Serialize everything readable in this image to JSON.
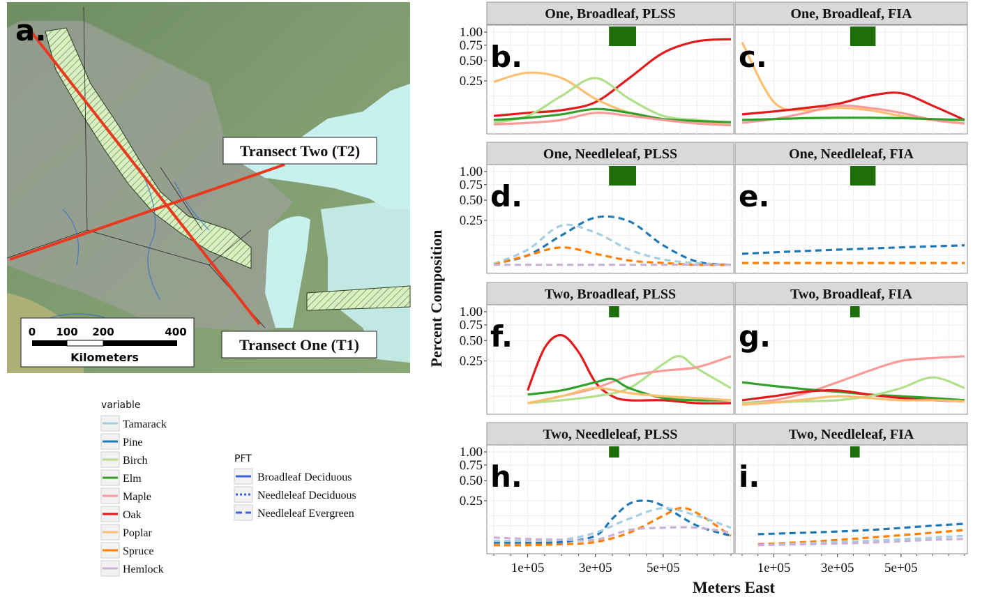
{
  "map": {
    "label": "a.",
    "transect_one": "Transect One (T1)",
    "transect_two": "Transect Two (T2)",
    "scale_ticks": [
      "0",
      "100",
      "200",
      "400"
    ],
    "scale_unit": "Kilometers",
    "colors": {
      "land": "#7c9a6e",
      "water": "#c8f0ee",
      "study_area": "#9ea09a",
      "transect": "#e8381e",
      "ecotone": "#d8f0c0"
    }
  },
  "legend_variable": {
    "title": "variable",
    "items": [
      {
        "name": "Tamarack",
        "color": "#a6cee3"
      },
      {
        "name": "Pine",
        "color": "#1f78b4"
      },
      {
        "name": "Birch",
        "color": "#b2df8a"
      },
      {
        "name": "Elm",
        "color": "#33a02c"
      },
      {
        "name": "Maple",
        "color": "#fb9a99"
      },
      {
        "name": "Oak",
        "color": "#e31a1c"
      },
      {
        "name": "Poplar",
        "color": "#fdbf6f"
      },
      {
        "name": "Spruce",
        "color": "#ff7f00"
      },
      {
        "name": "Hemlock",
        "color": "#cab2d6"
      }
    ]
  },
  "legend_pft": {
    "title": "PFT",
    "items": [
      {
        "name": "Broadleaf Deciduous",
        "dash": "solid"
      },
      {
        "name": "Needleleaf Deciduous",
        "dash": "dotted"
      },
      {
        "name": "Needleleaf Evergreen",
        "dash": "dashed"
      }
    ]
  },
  "chart_data": {
    "type": "line",
    "ylabel": "Percent Composition",
    "xlabel": "Meters East",
    "x_ticks": [
      "1e+05",
      "3e+05",
      "5e+05"
    ],
    "y_ticks": [
      "0.25",
      "0.50",
      "0.75",
      "1.00"
    ],
    "y_scale": "sqrt",
    "xlim": [
      0,
      700000
    ],
    "panels": [
      {
        "strip": "One, Broadleaf, PLSS",
        "label": "b.",
        "bar": [
          340000,
          420000
        ],
        "series": [
          {
            "name": "Oak",
            "x": [
              0,
              100000,
              200000,
              300000,
              400000,
              500000,
              600000,
              700000
            ],
            "values": [
              0.02,
              0.03,
              0.04,
              0.08,
              0.28,
              0.62,
              0.82,
              0.86
            ]
          },
          {
            "name": "Poplar",
            "x": [
              0,
              100000,
              200000,
              300000,
              400000,
              500000,
              600000,
              700000
            ],
            "values": [
              0.24,
              0.34,
              0.28,
              0.1,
              0.03,
              0.01,
              0.005,
              0.005
            ]
          },
          {
            "name": "Birch",
            "x": [
              0,
              100000,
              200000,
              300000,
              400000,
              500000,
              600000,
              700000
            ],
            "values": [
              0.005,
              0.02,
              0.12,
              0.28,
              0.1,
              0.02,
              0.01,
              0.005
            ]
          },
          {
            "name": "Elm",
            "x": [
              0,
              100000,
              200000,
              300000,
              400000,
              500000,
              600000,
              700000
            ],
            "values": [
              0.01,
              0.015,
              0.025,
              0.045,
              0.03,
              0.012,
              0.008,
              0.006
            ]
          },
          {
            "name": "Maple",
            "x": [
              0,
              100000,
              200000,
              300000,
              400000,
              500000,
              600000,
              700000
            ],
            "values": [
              0.003,
              0.005,
              0.01,
              0.03,
              0.02,
              0.01,
              0.004,
              0.002
            ]
          }
        ]
      },
      {
        "strip": "One, Broadleaf, FIA",
        "label": "c.",
        "bar": [
          340000,
          420000
        ],
        "series": [
          {
            "name": "Poplar",
            "x": [
              0,
              100000,
              200000,
              300000,
              400000,
              500000,
              600000,
              700000
            ],
            "values": [
              0.8,
              0.08,
              0.04,
              0.05,
              0.04,
              0.02,
              0.01,
              0.01
            ]
          },
          {
            "name": "Oak",
            "x": [
              0,
              100000,
              200000,
              300000,
              400000,
              500000,
              600000,
              700000
            ],
            "values": [
              0.025,
              0.035,
              0.05,
              0.07,
              0.12,
              0.14,
              0.06,
              0.01
            ]
          },
          {
            "name": "Maple",
            "x": [
              0,
              100000,
              200000,
              300000,
              400000,
              500000,
              600000,
              700000
            ],
            "values": [
              0.005,
              0.012,
              0.03,
              0.06,
              0.05,
              0.03,
              0.01,
              0.004
            ]
          },
          {
            "name": "Elm",
            "x": [
              0,
              100000,
              200000,
              300000,
              400000,
              500000,
              600000,
              700000
            ],
            "values": [
              0.01,
              0.012,
              0.014,
              0.015,
              0.015,
              0.014,
              0.012,
              0.01
            ]
          }
        ]
      },
      {
        "strip": "One, Needleleaf, PLSS",
        "label": "d.",
        "bar": [
          340000,
          420000
        ],
        "series": [
          {
            "name": "Pine",
            "x": [
              0,
              100000,
              200000,
              300000,
              400000,
              500000,
              600000,
              700000
            ],
            "values": [
              0.003,
              0.02,
              0.12,
              0.28,
              0.24,
              0.06,
              0.006,
              0.002
            ]
          },
          {
            "name": "Tamarack",
            "x": [
              0,
              100000,
              200000,
              300000,
              400000,
              500000,
              600000,
              700000
            ],
            "values": [
              0.003,
              0.04,
              0.2,
              0.14,
              0.04,
              0.01,
              0.004,
              0.002
            ]
          },
          {
            "name": "Spruce",
            "x": [
              0,
              100000,
              200000,
              300000,
              400000,
              500000,
              600000,
              700000
            ],
            "values": [
              0.002,
              0.02,
              0.05,
              0.025,
              0.008,
              0.004,
              0.002,
              0.002
            ]
          },
          {
            "name": "Hemlock",
            "x": [
              0,
              100000,
              200000,
              300000,
              400000,
              500000,
              600000,
              700000
            ],
            "values": [
              0.002,
              0.002,
              0.002,
              0.002,
              0.002,
              0.002,
              0.002,
              0.002
            ]
          }
        ]
      },
      {
        "strip": "One, Needleleaf, FIA",
        "label": "e.",
        "bar": [
          340000,
          420000
        ],
        "series": [
          {
            "name": "Pine",
            "x": [
              0,
              100000,
              200000,
              300000,
              400000,
              500000,
              600000,
              700000
            ],
            "values": [
              0.025,
              0.03,
              0.035,
              0.04,
              0.045,
              0.05,
              0.055,
              0.06
            ]
          },
          {
            "name": "Spruce",
            "x": [
              0,
              100000,
              200000,
              300000,
              400000,
              500000,
              600000,
              700000
            ],
            "values": [
              0.004,
              0.004,
              0.004,
              0.004,
              0.004,
              0.004,
              0.004,
              0.004
            ]
          }
        ]
      },
      {
        "strip": "Two, Broadleaf, PLSS",
        "label": "f.",
        "bar": [
          340000,
          370000
        ],
        "series": [
          {
            "name": "Oak",
            "x": [
              100000,
              150000,
              200000,
              250000,
              300000,
              350000,
              400000,
              500000,
              600000,
              700000
            ],
            "values": [
              0.04,
              0.4,
              0.58,
              0.35,
              0.08,
              0.02,
              0.01,
              0.01,
              0.005,
              0.005
            ]
          },
          {
            "name": "Birch",
            "x": [
              100000,
              200000,
              300000,
              400000,
              500000,
              550000,
              600000,
              700000
            ],
            "values": [
              0.005,
              0.01,
              0.02,
              0.05,
              0.22,
              0.3,
              0.18,
              0.05
            ]
          },
          {
            "name": "Maple",
            "x": [
              100000,
              200000,
              300000,
              400000,
              500000,
              600000,
              700000
            ],
            "values": [
              0.005,
              0.02,
              0.05,
              0.12,
              0.16,
              0.19,
              0.3
            ]
          },
          {
            "name": "Elm",
            "x": [
              100000,
              200000,
              300000,
              350000,
              400000,
              500000,
              600000,
              700000
            ],
            "values": [
              0.025,
              0.04,
              0.08,
              0.1,
              0.05,
              0.015,
              0.01,
              0.01
            ]
          },
          {
            "name": "Poplar",
            "x": [
              100000,
              200000,
              300000,
              400000,
              500000,
              600000,
              700000
            ],
            "values": [
              0.005,
              0.02,
              0.05,
              0.03,
              0.02,
              0.015,
              0.01
            ]
          }
        ]
      },
      {
        "strip": "Two, Broadleaf, FIA",
        "label": "g.",
        "bar": [
          340000,
          370000
        ],
        "series": [
          {
            "name": "Maple",
            "x": [
              0,
              100000,
              200000,
              300000,
              400000,
              500000,
              600000,
              700000
            ],
            "values": [
              0.005,
              0.01,
              0.03,
              0.08,
              0.16,
              0.25,
              0.28,
              0.3
            ]
          },
          {
            "name": "Elm",
            "x": [
              0,
              100000,
              200000,
              300000,
              400000,
              500000,
              600000,
              700000
            ],
            "values": [
              0.08,
              0.06,
              0.045,
              0.035,
              0.025,
              0.02,
              0.015,
              0.01
            ]
          },
          {
            "name": "Oak",
            "x": [
              0,
              100000,
              200000,
              300000,
              400000,
              500000,
              600000,
              700000
            ],
            "values": [
              0.01,
              0.02,
              0.035,
              0.04,
              0.025,
              0.015,
              0.01,
              0.008
            ]
          },
          {
            "name": "Birch",
            "x": [
              0,
              100000,
              200000,
              300000,
              400000,
              500000,
              600000,
              700000
            ],
            "values": [
              0.005,
              0.006,
              0.008,
              0.01,
              0.02,
              0.05,
              0.11,
              0.05
            ]
          },
          {
            "name": "Poplar",
            "x": [
              0,
              100000,
              200000,
              300000,
              400000,
              500000,
              600000,
              700000
            ],
            "values": [
              0.003,
              0.006,
              0.012,
              0.02,
              0.015,
              0.01,
              0.01,
              0.008
            ]
          }
        ]
      },
      {
        "strip": "Two, Needleleaf, PLSS",
        "label": "h.",
        "bar": [
          340000,
          370000
        ],
        "series": [
          {
            "name": "Pine",
            "x": [
              0,
              100000,
              200000,
              300000,
              350000,
              400000,
              450000,
              500000,
              600000,
              700000
            ],
            "values": [
              0.005,
              0.005,
              0.006,
              0.02,
              0.1,
              0.22,
              0.25,
              0.2,
              0.06,
              0.02
            ]
          },
          {
            "name": "Spruce",
            "x": [
              0,
              100000,
              200000,
              300000,
              400000,
              500000,
              550000,
              600000,
              700000
            ],
            "values": [
              0.002,
              0.002,
              0.003,
              0.006,
              0.03,
              0.12,
              0.18,
              0.14,
              0.02
            ]
          },
          {
            "name": "Tamarack",
            "x": [
              0,
              100000,
              200000,
              300000,
              400000,
              500000,
              600000,
              700000
            ],
            "values": [
              0.008,
              0.008,
              0.01,
              0.03,
              0.1,
              0.18,
              0.12,
              0.05
            ]
          },
          {
            "name": "Hemlock",
            "x": [
              0,
              100000,
              200000,
              300000,
              400000,
              500000,
              600000,
              700000
            ],
            "values": [
              0.015,
              0.012,
              0.01,
              0.01,
              0.04,
              0.05,
              0.05,
              0.03
            ]
          }
        ]
      },
      {
        "strip": "Two, Needleleaf, FIA",
        "label": "i.",
        "bar": [
          340000,
          370000
        ],
        "series": [
          {
            "name": "Pine",
            "x": [
              50000,
              200000,
              400000,
              600000,
              700000
            ],
            "values": [
              0.025,
              0.03,
              0.04,
              0.06,
              0.07
            ]
          },
          {
            "name": "Spruce",
            "x": [
              50000,
              200000,
              400000,
              600000,
              700000
            ],
            "values": [
              0.003,
              0.006,
              0.015,
              0.03,
              0.04
            ]
          },
          {
            "name": "Tamarack",
            "x": [
              50000,
              200000,
              400000,
              600000,
              700000
            ],
            "values": [
              0.002,
              0.004,
              0.008,
              0.015,
              0.02
            ]
          },
          {
            "name": "Hemlock",
            "x": [
              50000,
              200000,
              400000,
              600000,
              700000
            ],
            "values": [
              0.002,
              0.003,
              0.005,
              0.01,
              0.012
            ]
          }
        ]
      }
    ]
  }
}
